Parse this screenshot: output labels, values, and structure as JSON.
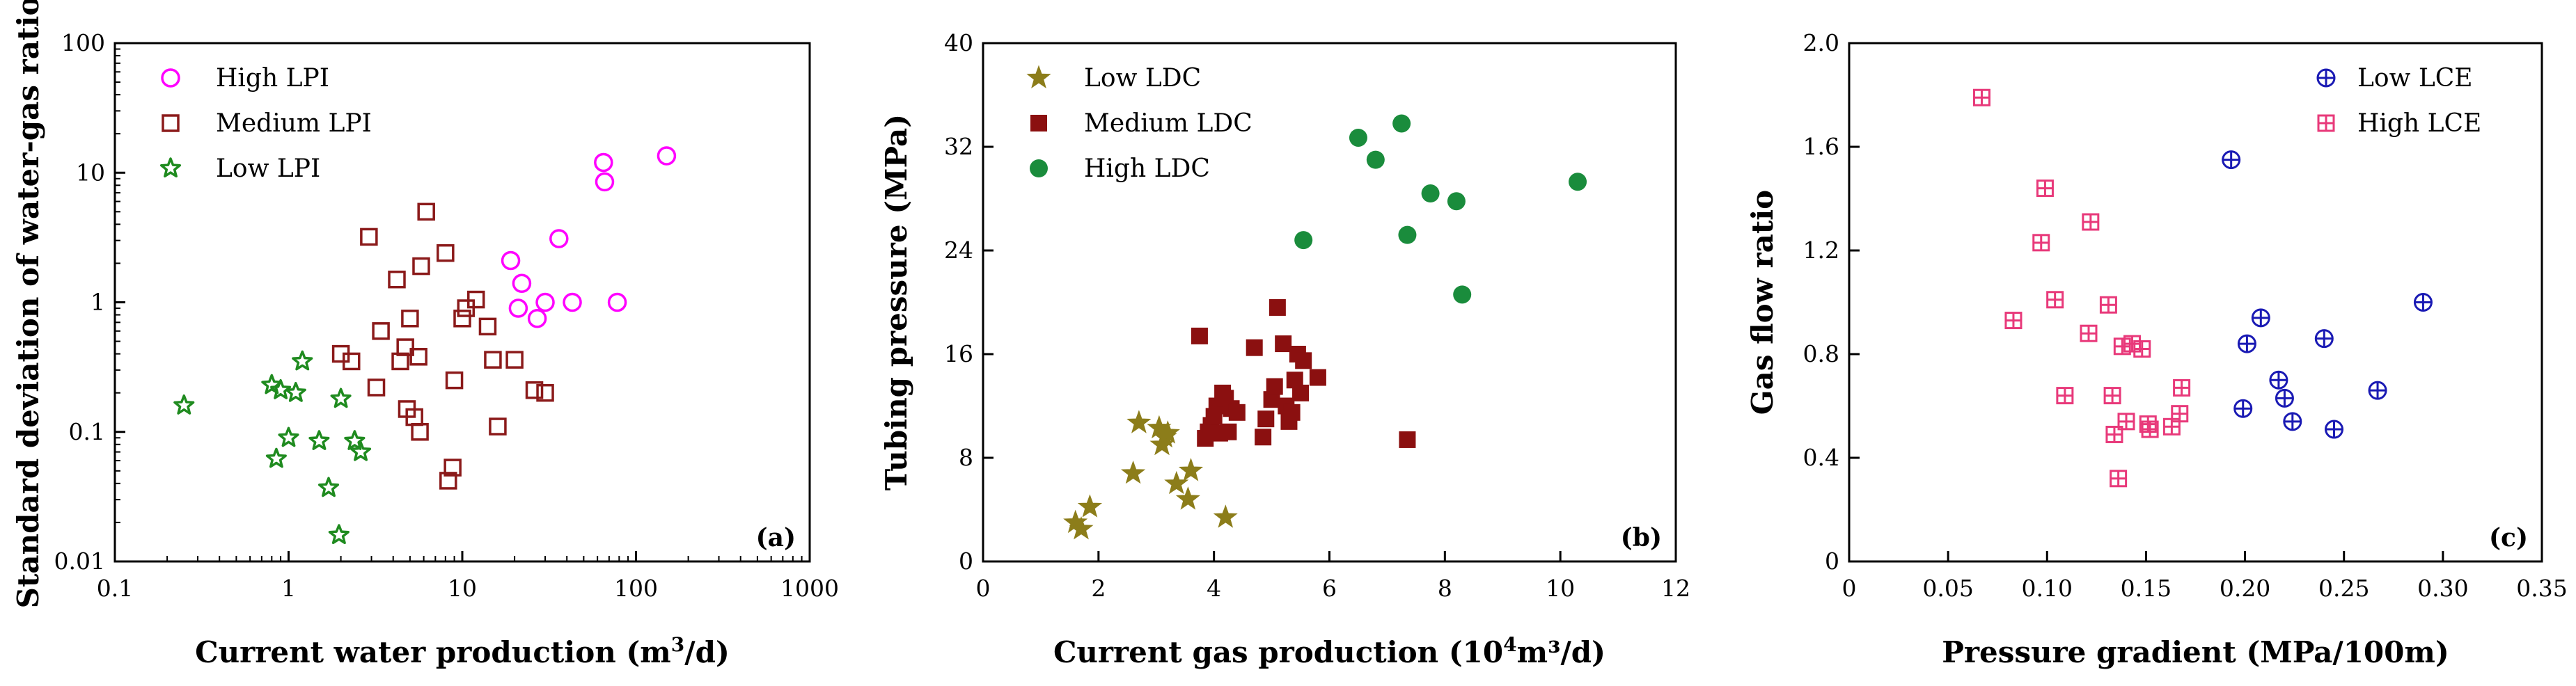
{
  "chart_data": [
    {
      "type": "scatter",
      "panel_label": "(a)",
      "xscale": "log",
      "yscale": "log",
      "xlabel_prefix": "Current water production (m",
      "xlabel_sup": "3",
      "xlabel_suffix": "/d)",
      "ylabel": "Standard deviation of water-gas ratio",
      "xlim": [
        0.1,
        1000
      ],
      "ylim": [
        0.01,
        100
      ],
      "xticks": [
        0.1,
        1,
        10,
        100,
        1000
      ],
      "xtick_labels": [
        "0.1",
        "1",
        "10",
        "100",
        "1000"
      ],
      "yticks": [
        0.01,
        0.1,
        1,
        10,
        100
      ],
      "ytick_labels": [
        "0.01",
        "0.1",
        "1",
        "10",
        "100"
      ],
      "legend_position": "top-left",
      "series": [
        {
          "name": "High LPI",
          "marker": "circle",
          "color": "#ff00ff",
          "points": [
            [
              19,
              2.1
            ],
            [
              21,
              0.9
            ],
            [
              22,
              1.4
            ],
            [
              27,
              0.75
            ],
            [
              30,
              1.0
            ],
            [
              36,
              3.1
            ],
            [
              43,
              1.0
            ],
            [
              65,
              12.0
            ],
            [
              66,
              8.5
            ],
            [
              78,
              1.0
            ],
            [
              150,
              13.5
            ]
          ]
        },
        {
          "name": "Medium LPI",
          "marker": "square",
          "color": "#8b1a1a",
          "points": [
            [
              2.0,
              0.4
            ],
            [
              2.3,
              0.35
            ],
            [
              2.9,
              3.2
            ],
            [
              3.2,
              0.22
            ],
            [
              3.4,
              0.6
            ],
            [
              4.2,
              1.5
            ],
            [
              4.4,
              0.35
            ],
            [
              4.7,
              0.45
            ],
            [
              4.8,
              0.15
            ],
            [
              5.0,
              0.75
            ],
            [
              5.3,
              0.13
            ],
            [
              5.6,
              0.38
            ],
            [
              5.7,
              0.1
            ],
            [
              5.8,
              1.9
            ],
            [
              6.2,
              5.0
            ],
            [
              8.0,
              2.4
            ],
            [
              8.3,
              0.042
            ],
            [
              8.8,
              0.053
            ],
            [
              9.0,
              0.25
            ],
            [
              10.0,
              0.75
            ],
            [
              10.5,
              0.9
            ],
            [
              12.0,
              1.05
            ],
            [
              14.0,
              0.65
            ],
            [
              15.0,
              0.36
            ],
            [
              16.0,
              0.11
            ],
            [
              20.0,
              0.36
            ],
            [
              26.0,
              0.21
            ],
            [
              30.0,
              0.2
            ]
          ]
        },
        {
          "name": "Low LPI",
          "marker": "star",
          "color": "#1f8b1f",
          "points": [
            [
              0.25,
              0.16
            ],
            [
              0.8,
              0.23
            ],
            [
              0.85,
              0.062
            ],
            [
              0.9,
              0.21
            ],
            [
              1.0,
              0.09
            ],
            [
              1.1,
              0.2
            ],
            [
              1.2,
              0.35
            ],
            [
              1.5,
              0.085
            ],
            [
              1.7,
              0.037
            ],
            [
              1.95,
              0.016
            ],
            [
              2.0,
              0.18
            ],
            [
              2.4,
              0.085
            ],
            [
              2.6,
              0.07
            ]
          ]
        }
      ]
    },
    {
      "type": "scatter",
      "panel_label": "(b)",
      "xscale": "linear",
      "yscale": "linear",
      "xlabel_prefix": "Current gas production (10",
      "xlabel_sup": "4",
      "xlabel_suffix": "m³/d)",
      "ylabel": "Tubing pressure (MPa)",
      "xlim": [
        0,
        12
      ],
      "ylim": [
        0,
        40
      ],
      "xticks": [
        0,
        2,
        4,
        6,
        8,
        10,
        12
      ],
      "xtick_labels": [
        "0",
        "2",
        "4",
        "6",
        "8",
        "10",
        "12"
      ],
      "yticks": [
        0,
        8,
        16,
        24,
        32,
        40
      ],
      "ytick_labels": [
        "0",
        "8",
        "16",
        "24",
        "32",
        "40"
      ],
      "legend_position": "top-left",
      "series": [
        {
          "name": "Low LDC",
          "marker": "filled-star",
          "color": "#8c7d1a",
          "points": [
            [
              1.6,
              3.0
            ],
            [
              1.7,
              2.5
            ],
            [
              1.85,
              4.2
            ],
            [
              2.6,
              6.8
            ],
            [
              2.7,
              10.7
            ],
            [
              3.05,
              10.3
            ],
            [
              3.1,
              9.0
            ],
            [
              3.15,
              9.6
            ],
            [
              3.2,
              9.9
            ],
            [
              3.35,
              6.0
            ],
            [
              3.55,
              4.8
            ],
            [
              3.6,
              7.0
            ],
            [
              4.2,
              3.4
            ]
          ]
        },
        {
          "name": "Medium LDC",
          "marker": "filled-square",
          "color": "#8b1010",
          "points": [
            [
              3.75,
              17.4
            ],
            [
              3.85,
              9.5
            ],
            [
              3.9,
              10.0
            ],
            [
              3.95,
              10.5
            ],
            [
              4.0,
              11.2
            ],
            [
              4.05,
              12.0
            ],
            [
              4.1,
              9.9
            ],
            [
              4.15,
              13.0
            ],
            [
              4.2,
              12.6
            ],
            [
              4.25,
              10.0
            ],
            [
              4.3,
              11.8
            ],
            [
              4.4,
              11.5
            ],
            [
              4.7,
              16.5
            ],
            [
              4.85,
              9.6
            ],
            [
              4.9,
              11.0
            ],
            [
              5.0,
              12.5
            ],
            [
              5.05,
              13.5
            ],
            [
              5.1,
              19.6
            ],
            [
              5.2,
              16.8
            ],
            [
              5.25,
              12.0
            ],
            [
              5.3,
              10.8
            ],
            [
              5.35,
              11.5
            ],
            [
              5.4,
              14.0
            ],
            [
              5.45,
              16.0
            ],
            [
              5.5,
              13.0
            ],
            [
              5.55,
              15.5
            ],
            [
              5.8,
              14.2
            ],
            [
              7.35,
              9.4
            ]
          ]
        },
        {
          "name": "High LDC",
          "marker": "filled-circle",
          "color": "#1a8c3c",
          "points": [
            [
              5.55,
              24.8
            ],
            [
              6.5,
              32.7
            ],
            [
              6.8,
              31.0
            ],
            [
              7.25,
              33.8
            ],
            [
              7.35,
              25.2
            ],
            [
              7.75,
              28.4
            ],
            [
              8.2,
              27.8
            ],
            [
              8.3,
              20.6
            ],
            [
              10.3,
              29.3
            ]
          ]
        }
      ]
    },
    {
      "type": "scatter",
      "panel_label": "(c)",
      "xscale": "linear",
      "yscale": "linear",
      "xlabel_prefix": "Pressure gradient (MPa/100m)",
      "xlabel_sup": "",
      "xlabel_suffix": "",
      "ylabel": "Gas flow ratio",
      "xlim": [
        0,
        0.35
      ],
      "ylim": [
        0,
        2.0
      ],
      "xticks": [
        0,
        0.05,
        0.1,
        0.15,
        0.2,
        0.25,
        0.3,
        0.35
      ],
      "xtick_labels": [
        "0",
        "0.05",
        "0.10",
        "0.15",
        "0.20",
        "0.25",
        "0.30",
        "0.35"
      ],
      "yticks": [
        0,
        0.4,
        0.8,
        1.2,
        1.6,
        2.0
      ],
      "ytick_labels": [
        "0",
        "0.4",
        "0.8",
        "1.2",
        "1.6",
        "2.0"
      ],
      "legend_position": "top-right",
      "series": [
        {
          "name": "Low LCE",
          "marker": "circle-plus",
          "color": "#1a1ab4",
          "points": [
            [
              0.193,
              1.55
            ],
            [
              0.199,
              0.59
            ],
            [
              0.201,
              0.84
            ],
            [
              0.208,
              0.94
            ],
            [
              0.217,
              0.7
            ],
            [
              0.22,
              0.63
            ],
            [
              0.224,
              0.54
            ],
            [
              0.24,
              0.86
            ],
            [
              0.245,
              0.51
            ],
            [
              0.267,
              0.66
            ],
            [
              0.29,
              1.0
            ]
          ]
        },
        {
          "name": "High LCE",
          "marker": "square-plus",
          "color": "#e8397a",
          "points": [
            [
              0.067,
              1.79
            ],
            [
              0.083,
              0.93
            ],
            [
              0.097,
              1.23
            ],
            [
              0.099,
              1.44
            ],
            [
              0.104,
              1.01
            ],
            [
              0.109,
              0.64
            ],
            [
              0.121,
              0.88
            ],
            [
              0.122,
              1.31
            ],
            [
              0.131,
              0.99
            ],
            [
              0.133,
              0.64
            ],
            [
              0.134,
              0.49
            ],
            [
              0.136,
              0.32
            ],
            [
              0.138,
              0.83
            ],
            [
              0.14,
              0.54
            ],
            [
              0.143,
              0.84
            ],
            [
              0.148,
              0.82
            ],
            [
              0.151,
              0.53
            ],
            [
              0.152,
              0.51
            ],
            [
              0.163,
              0.52
            ],
            [
              0.167,
              0.57
            ],
            [
              0.168,
              0.67
            ]
          ]
        }
      ]
    }
  ]
}
